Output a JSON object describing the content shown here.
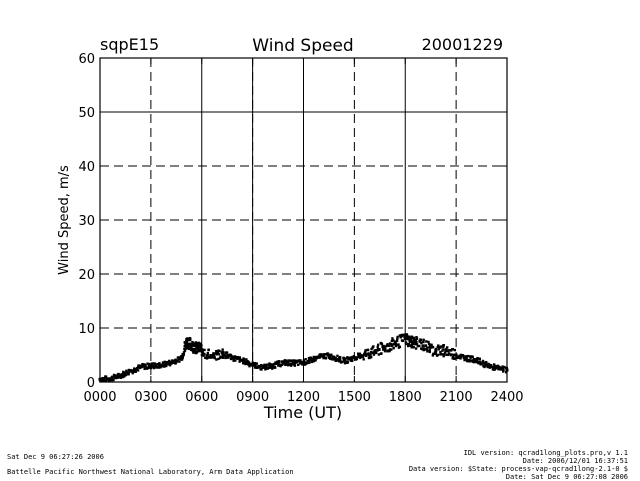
{
  "chart_data": {
    "type": "scatter",
    "title": "Wind Speed",
    "site_label": "sqpE15",
    "date_label": "20001229",
    "xlabel": "Time (UT)",
    "ylabel": "Wind Speed, m/s",
    "xlim": [
      0,
      2400
    ],
    "ylim": [
      0,
      60
    ],
    "xticks": [
      "0000",
      "0300",
      "0600",
      "0900",
      "1200",
      "1500",
      "1800",
      "2100",
      "2400"
    ],
    "yticks": [
      "0",
      "10",
      "20",
      "30",
      "40",
      "50",
      "60"
    ],
    "solid_y": [
      50
    ],
    "dashed_y": [
      10,
      20,
      30,
      40
    ],
    "solid_x": [
      0,
      600,
      900,
      1200,
      1800
    ],
    "dashed_x": [
      300,
      900,
      1500,
      2100
    ],
    "series": [
      {
        "name": "Wind Speed",
        "x": [
          0,
          60,
          120,
          180,
          240,
          300,
          360,
          420,
          480,
          510,
          540,
          570,
          600,
          660,
          720,
          780,
          840,
          900,
          960,
          1020,
          1080,
          1140,
          1200,
          1260,
          1320,
          1380,
          1440,
          1500,
          1560,
          1620,
          1680,
          1740,
          1800,
          1830,
          1860,
          1920,
          1980,
          2040,
          2100,
          2160,
          2220,
          2280,
          2340,
          2400
        ],
        "values": [
          0.5,
          0.6,
          1.2,
          2.0,
          2.8,
          3.0,
          3.1,
          3.6,
          4.4,
          7.5,
          6.8,
          6.3,
          6.0,
          4.6,
          5.5,
          4.5,
          4.0,
          3.2,
          2.7,
          3.0,
          3.6,
          3.5,
          3.6,
          4.2,
          4.9,
          4.6,
          3.9,
          4.5,
          5.1,
          5.6,
          6.4,
          7.1,
          8.0,
          7.5,
          7.3,
          6.7,
          5.8,
          5.8,
          5.0,
          4.4,
          4.1,
          3.1,
          2.6,
          2.2
        ]
      }
    ]
  },
  "footer": {
    "left_timestamp": "Sat Dec  9 06:27:26 2006",
    "left_org": "Battelle Pacific Northwest National Laboratory, Arm Data Application",
    "right_idl": "IDL version: qcrad1long_plots.pro,v 1.1",
    "right_date": "Date: 2006/12/01 16:37:51",
    "right_data_version": "Data version: $State: process-vap-qcrad1long-2.1-0 $",
    "right_run_date": "Date: Sat Dec  9 06:27:08 2006"
  }
}
